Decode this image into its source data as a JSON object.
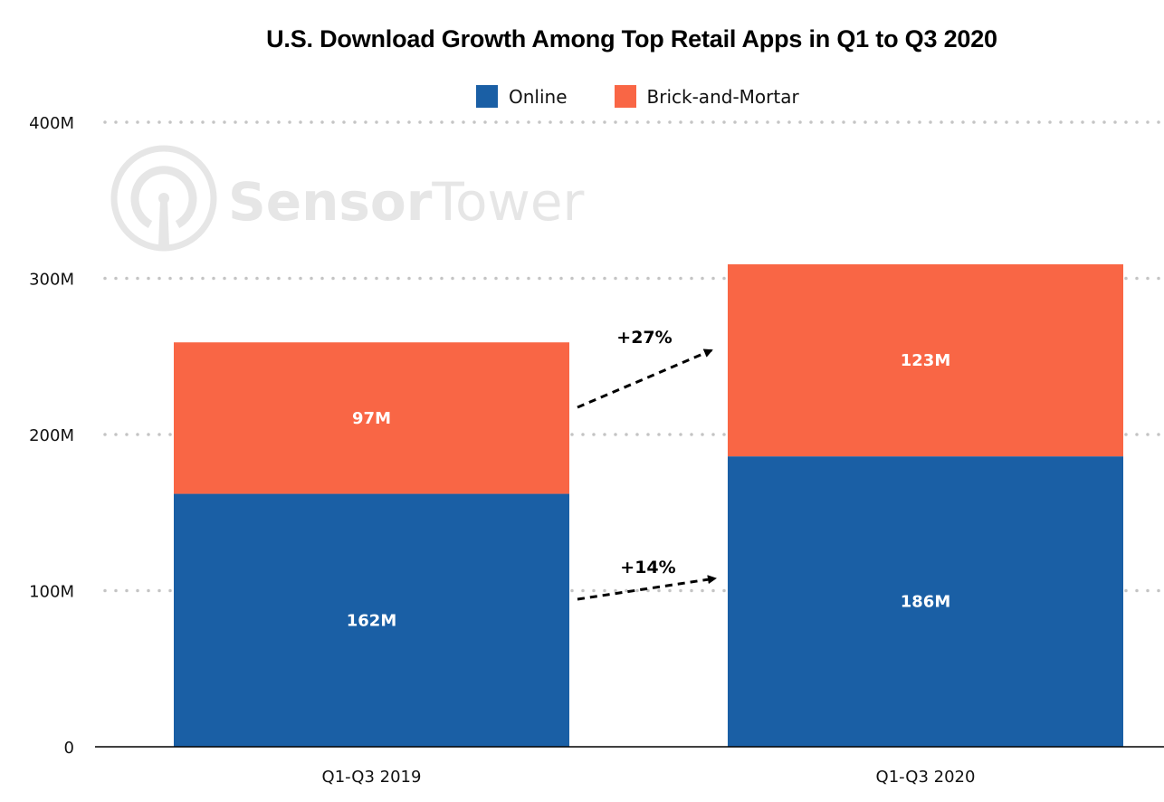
{
  "chart_data": {
    "type": "bar",
    "stacked": true,
    "title": "U.S. Download Growth Among Top Retail Apps in Q1 to Q3 2020",
    "xlabel": "",
    "ylabel": "",
    "categories": [
      "Q1-Q3 2019",
      "Q1-Q3 2020"
    ],
    "series": [
      {
        "name": "Online",
        "color": "#1a5fa5",
        "values": [
          162,
          186
        ],
        "labels": [
          "162M",
          "186M"
        ]
      },
      {
        "name": "Brick-and-Mortar",
        "color": "#f96645",
        "values": [
          97,
          123
        ],
        "labels": [
          "97M",
          "123M"
        ]
      }
    ],
    "ylim": [
      0,
      400
    ],
    "yticks": [
      0,
      100,
      200,
      300,
      400
    ],
    "ytick_labels": [
      "0",
      "100M",
      "200M",
      "300M",
      "400M"
    ],
    "grid": true,
    "grid_style": "dotted",
    "legend_position": "top-center",
    "annotations": [
      {
        "text": "+27%",
        "series": "Brick-and-Mortar",
        "from": "Q1-Q3 2019",
        "to": "Q1-Q3 2020"
      },
      {
        "text": "+14%",
        "series": "Online",
        "from": "Q1-Q3 2019",
        "to": "Q1-Q3 2020"
      }
    ],
    "watermark": "SensorTower"
  },
  "watermark": {
    "text_bold": "Sensor",
    "text_light": "Tower",
    "icon": "sensor-tower-logo-icon"
  }
}
